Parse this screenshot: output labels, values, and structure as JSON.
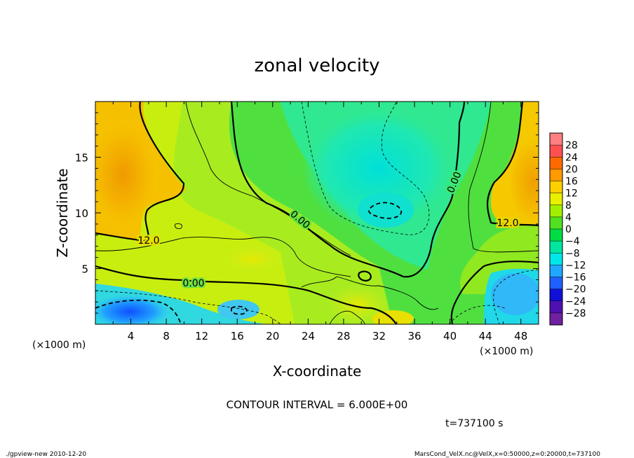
{
  "chart_data": {
    "type": "heatmap",
    "title": "zonal velocity",
    "xlabel": "X-coordinate",
    "ylabel": "Z-coordinate",
    "x_units": "(×1000 m)",
    "y_units": "(×1000 m)",
    "xlim": [
      0,
      50
    ],
    "ylim": [
      0,
      20
    ],
    "x_ticks": [
      "4",
      "8",
      "12",
      "16",
      "20",
      "24",
      "28",
      "32",
      "36",
      "40",
      "44",
      "48"
    ],
    "y_ticks": [
      "5",
      "10",
      "15"
    ],
    "colorbar_ticks": [
      "28",
      "24",
      "20",
      "16",
      "12",
      "8",
      "4",
      "0",
      "−4",
      "−8",
      "−12",
      "−16",
      "−20",
      "−24",
      "−28"
    ],
    "colorbar_colors": [
      "#ff8080",
      "#ff5050",
      "#ff6a00",
      "#ff9a00",
      "#ffd000",
      "#e8f000",
      "#a0f000",
      "#50e020",
      "#00dd44",
      "#00e8a0",
      "#00e8e8",
      "#20a8ff",
      "#2060ff",
      "#1010d8",
      "#5010b0",
      "#7020a0"
    ],
    "contour_labels": [
      "0.00",
      "0.00",
      "0.00",
      "12.0",
      "12.0"
    ],
    "contour_interval": "CONTOUR INTERVAL = 6.000E+00",
    "time_label": "t=737100 s",
    "footer_left": "./gpview-new  2010-12-20",
    "footer_right": "MarsCond_VelX.nc@VelX,x=0:50000,z=0:20000,t=737100"
  }
}
